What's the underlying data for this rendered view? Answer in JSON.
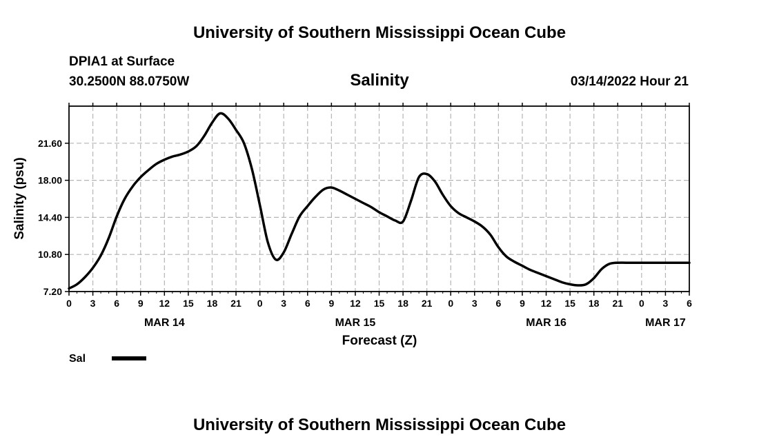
{
  "header": {
    "top_title": "University of Southern Mississippi Ocean Cube",
    "station": "DPIA1 at Surface",
    "coords": "30.2500N  88.0750W",
    "variable": "Salinity",
    "datetime": "03/14/2022 Hour 21",
    "bottom_title": "University of Southern Mississippi Ocean Cube"
  },
  "legend": {
    "label": "Sal",
    "color": "#000000"
  },
  "chart_data": {
    "type": "line",
    "title": "Salinity",
    "xlabel": "Forecast (Z)",
    "ylabel": "Salinity (psu)",
    "x_unit": "hours since MAR 14 00Z",
    "xlim": [
      0,
      78
    ],
    "ylim": [
      7.2,
      25.2
    ],
    "y_ticks": [
      "7.20",
      "10.80",
      "14.40",
      "18.00",
      "21.60"
    ],
    "y_tick_values": [
      7.2,
      10.8,
      14.4,
      18.0,
      21.6
    ],
    "x_ticks": [
      "0",
      "3",
      "6",
      "9",
      "12",
      "15",
      "18",
      "21",
      "0",
      "3",
      "6",
      "9",
      "12",
      "15",
      "18",
      "21",
      "0",
      "3",
      "6",
      "9",
      "12",
      "15",
      "18",
      "21",
      "0",
      "3",
      "6"
    ],
    "x_tick_values": [
      0,
      3,
      6,
      9,
      12,
      15,
      18,
      21,
      24,
      27,
      30,
      33,
      36,
      39,
      42,
      45,
      48,
      51,
      54,
      57,
      60,
      63,
      66,
      69,
      72,
      75,
      78
    ],
    "date_labels": [
      {
        "text": "MAR 14",
        "x": 12
      },
      {
        "text": "MAR 15",
        "x": 36
      },
      {
        "text": "MAR 16",
        "x": 60
      },
      {
        "text": "MAR 17",
        "x": 75
      }
    ],
    "grid": true,
    "series": [
      {
        "name": "Sal",
        "x": [
          0,
          1,
          2,
          3,
          4,
          5,
          6,
          7,
          8,
          9,
          10,
          11,
          12,
          13,
          14,
          15,
          16,
          17,
          18,
          19,
          20,
          21,
          22,
          23,
          24,
          25,
          26,
          27,
          28,
          29,
          30,
          31,
          32,
          33,
          34,
          35,
          36,
          37,
          38,
          39,
          40,
          41,
          42,
          43,
          44,
          45,
          46,
          47,
          48,
          49,
          50,
          51,
          52,
          53,
          54,
          55,
          56,
          57,
          58,
          59,
          60,
          61,
          62,
          63,
          64,
          65,
          66,
          67,
          68,
          69,
          70,
          71,
          72,
          73,
          74,
          75,
          76,
          77,
          78
        ],
        "values": [
          7.5,
          7.9,
          8.6,
          9.5,
          10.7,
          12.4,
          14.5,
          16.2,
          17.4,
          18.3,
          19.0,
          19.6,
          20.0,
          20.3,
          20.5,
          20.8,
          21.3,
          22.3,
          23.6,
          24.5,
          24.0,
          22.9,
          21.6,
          19.1,
          15.6,
          12.0,
          10.3,
          11.0,
          12.8,
          14.5,
          15.5,
          16.4,
          17.1,
          17.3,
          17.0,
          16.6,
          16.2,
          15.8,
          15.4,
          14.9,
          14.5,
          14.1,
          14.0,
          16.0,
          18.3,
          18.6,
          17.9,
          16.6,
          15.5,
          14.8,
          14.4,
          14.0,
          13.5,
          12.7,
          11.5,
          10.6,
          10.1,
          9.7,
          9.3,
          9.0,
          8.7,
          8.4,
          8.1,
          7.9,
          7.8,
          7.9,
          8.5,
          9.4,
          9.9,
          10.0,
          10.0,
          10.0,
          10.0,
          10.0,
          10.0,
          10.0,
          10.0,
          10.0,
          10.0
        ]
      }
    ]
  }
}
